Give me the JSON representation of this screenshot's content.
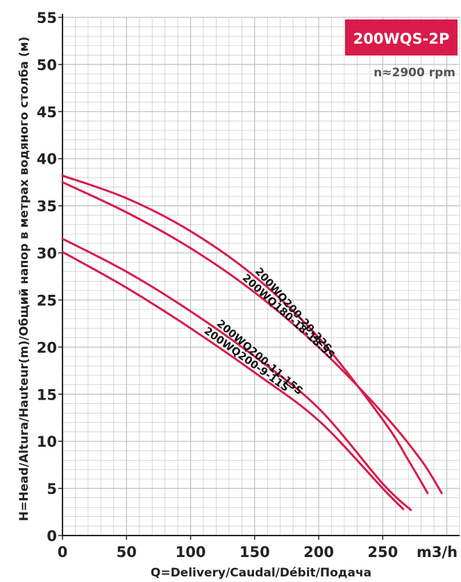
{
  "chart_data": {
    "type": "line",
    "title": "200WQS-2P",
    "subtitle": "n≈2900 rpm",
    "xlabel": "Q=Delivery/Caudal/Débit/Подача",
    "ylabel": "H=Head/Altura/Hauteur(m)/Общий напор в метрах водяного столба (м)",
    "x_unit": "m3/h",
    "xlim": [
      0,
      310
    ],
    "ylim": [
      0,
      55
    ],
    "x_ticks": [
      0,
      50,
      100,
      150,
      200,
      250
    ],
    "y_ticks": [
      0,
      5,
      10,
      15,
      20,
      25,
      30,
      35,
      40,
      45,
      50,
      55
    ],
    "grid": true,
    "colors": {
      "curve": "#d81b4a",
      "badge": "#d81b4a",
      "grid": "#bdbdbd"
    },
    "series": [
      {
        "name": "200WQ200-20-22S",
        "x": [
          0,
          50,
          100,
          150,
          200,
          250,
          270,
          285
        ],
        "y": [
          38.2,
          35.8,
          32.3,
          27.5,
          21,
          12.3,
          8,
          4.5
        ]
      },
      {
        "name": "200WQ180-18-18.5S",
        "x": [
          0,
          50,
          100,
          150,
          200,
          250,
          280,
          296
        ],
        "y": [
          37.5,
          34.3,
          30.5,
          25.8,
          20,
          13,
          8,
          4.5
        ]
      },
      {
        "name": "200WQ200-11-15S",
        "x": [
          0,
          50,
          100,
          150,
          200,
          250,
          272
        ],
        "y": [
          31.5,
          28,
          23.8,
          19,
          13.5,
          5.5,
          2.7
        ]
      },
      {
        "name": "200WQ200-9-11S",
        "x": [
          0,
          50,
          100,
          150,
          200,
          250,
          266
        ],
        "y": [
          30.1,
          26.3,
          22,
          17.3,
          12.2,
          5,
          2.8
        ]
      }
    ]
  }
}
